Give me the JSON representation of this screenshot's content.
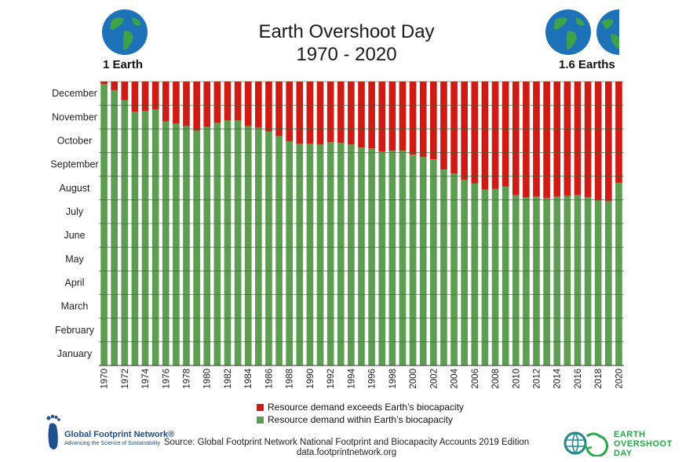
{
  "title": {
    "line1": "Earth Overshoot Day",
    "line2": "1970 - 2020"
  },
  "left_label": "1 Earth",
  "right_label": "1.6 Earths",
  "legend": {
    "exceed_label": "Resource demand exceeds Earth’s biocapacity",
    "within_label": "Resource demand within Earth’s biocapacity"
  },
  "source": {
    "line1": "Source: Global Footprint Network National Footprint and Biocapacity Accounts 2019 Edition",
    "line2": "data.footprintnetwork.org"
  },
  "logos": {
    "gfn_name": "Global Footprint Network®",
    "gfn_tagline": "Advancing the Science of Sustainability",
    "eod_line1": "EARTH",
    "eod_line2": "OVERSHOOT",
    "eod_line3": "DAY"
  },
  "colors": {
    "green": "#5e9e52",
    "red": "#d01a14",
    "grid": "#3c5e38",
    "ocean": "#1e73b8",
    "land": "#3da34a"
  },
  "chart_data": {
    "type": "bar",
    "stacked": true,
    "ylabel_months": [
      "January",
      "February",
      "March",
      "April",
      "May",
      "June",
      "July",
      "August",
      "September",
      "October",
      "November",
      "December"
    ],
    "ylim_days": [
      0,
      365
    ],
    "x": [
      1970,
      1971,
      1972,
      1973,
      1974,
      1975,
      1976,
      1977,
      1978,
      1979,
      1980,
      1981,
      1982,
      1983,
      1984,
      1985,
      1986,
      1987,
      1988,
      1989,
      1990,
      1991,
      1992,
      1993,
      1994,
      1995,
      1996,
      1997,
      1998,
      1999,
      2000,
      2001,
      2002,
      2003,
      2004,
      2005,
      2006,
      2007,
      2008,
      2009,
      2010,
      2011,
      2012,
      2013,
      2014,
      2015,
      2016,
      2017,
      2018,
      2019,
      2020
    ],
    "x_tick_labels": [
      "1970",
      "1972",
      "1974",
      "1976",
      "1978",
      "1980",
      "1982",
      "1984",
      "1986",
      "1988",
      "1990",
      "1992",
      "1994",
      "1996",
      "1998",
      "2000",
      "2002",
      "2004",
      "2006",
      "2008",
      "2010",
      "2012",
      "2014",
      "2016",
      "2018",
      "2020"
    ],
    "series": [
      {
        "name": "Resource demand within Earth’s biocapacity (overshoot day of year)",
        "values": [
          362,
          354,
          341,
          326,
          327,
          329,
          314,
          311,
          308,
          302,
          307,
          312,
          315,
          315,
          308,
          306,
          301,
          295,
          288,
          285,
          285,
          284,
          287,
          286,
          284,
          280,
          279,
          275,
          276,
          276,
          271,
          268,
          265,
          252,
          247,
          239,
          234,
          226,
          227,
          230,
          219,
          216,
          217,
          215,
          217,
          218,
          219,
          216,
          212,
          211,
          235
        ]
      },
      {
        "name": "Resource demand exceeds Earth’s biocapacity",
        "fills_to": 365
      }
    ]
  }
}
